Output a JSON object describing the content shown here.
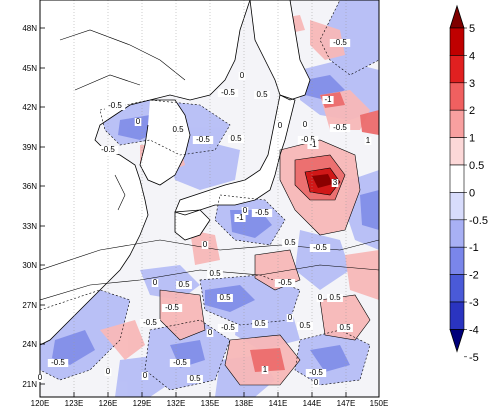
{
  "map": {
    "x_ticks": [
      "120E",
      "123E",
      "126E",
      "129E",
      "132E",
      "135E",
      "138E",
      "141E",
      "144E",
      "147E",
      "150E"
    ],
    "y_ticks": [
      "48N",
      "45N",
      "42N",
      "39N",
      "36N",
      "33N",
      "30N",
      "27N",
      "24N",
      "21N"
    ]
  },
  "contour_labels": [
    "-0.5",
    "0",
    "-0.5",
    "0.5",
    "-1",
    "-0.5",
    "0",
    "-0.5",
    "0.5",
    "-0.5",
    "0.5",
    "0",
    "0",
    "-0.5",
    "-0.5",
    "1",
    "-1",
    "3",
    "-0.5",
    "0",
    "-1",
    "0",
    "0.5",
    "-0.5",
    "0",
    "0.5",
    "-0.5",
    "0.5",
    "0.5",
    "0",
    "-0.5",
    "0",
    "0.5",
    "0.5",
    "-0.5",
    "-0.5",
    "0",
    "0.5",
    "1",
    "-0.5",
    "0",
    "0",
    "-0.5",
    "0",
    "-0.5",
    "0",
    "0.5",
    "0.5"
  ],
  "colorbar": {
    "labels": [
      "5",
      "4",
      "3",
      "2",
      "1",
      "0.5",
      "0",
      "-0.5",
      "-1",
      "-2",
      "-3",
      "-4",
      "-5"
    ],
    "colors": [
      "#7f0000",
      "#bf0000",
      "#e02020",
      "#f06060",
      "#f8a0a0",
      "#fcd8d8",
      "#ffffff",
      "#d8dcfc",
      "#a8b0f4",
      "#7a86ea",
      "#4a5ad8",
      "#2a34c0",
      "#00007a"
    ]
  }
}
